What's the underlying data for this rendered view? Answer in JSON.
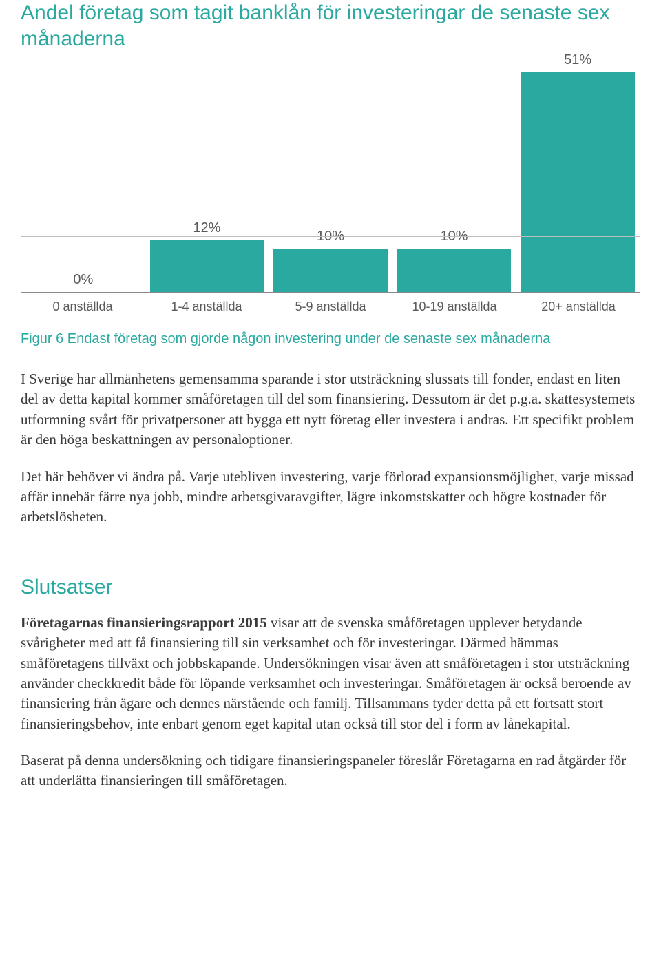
{
  "chart": {
    "title": "Andel företag som tagit banklån för investeringar de senaste sex månaderna",
    "title_color": "#2aa9a0",
    "type": "bar",
    "categories": [
      "0 anställda",
      "1-4 anställda",
      "5-9 anställda",
      "10-19 anställda",
      "20+ anställda"
    ],
    "values": [
      0,
      12,
      10,
      10,
      51
    ],
    "value_labels": [
      "0%",
      "12%",
      "10%",
      "10%",
      "51%"
    ],
    "ymax": 51,
    "gridlines": [
      12.75,
      25.5,
      38.25,
      51
    ],
    "bar_color": "#2aa9a0",
    "grid_color": "#bdbdbd",
    "axis_color": "#8a8a8a",
    "label_color": "#5a5a5a",
    "label_fontsize": 20,
    "xlabel_fontsize": 18,
    "caption": "Figur 6 Endast företag som gjorde någon investering under de senaste sex månaderna",
    "caption_color": "#2aa9a0"
  },
  "para1": "I Sverige har allmänhetens gemensamma sparande i stor utsträckning slussats till fonder, endast en liten del av detta kapital kommer småföretagen till del som finansiering. Dessutom är det p.g.a. skattesystemets utformning svårt för privatpersoner att bygga ett nytt företag eller investera i andras. Ett specifikt problem är den höga beskattningen av personaloptioner.",
  "para2": "Det här behöver vi ändra på. Varje utebliven investering, varje förlorad expansionsmöjlighet, varje missad affär innebär färre nya jobb, mindre arbetsgivaravgifter, lägre inkomstskatter och högre kostnader för arbetslösheten.",
  "section": {
    "heading": "Slutsatser",
    "heading_color": "#2aa9a0",
    "para1_bold": "Företagarnas finansieringsrapport 2015",
    "para1_rest": " visar att de svenska småföretagen upplever betydande svårigheter med att få finansiering till sin verksamhet och för investeringar. Därmed hämmas småföretagens tillväxt och jobbskapande. Undersökningen visar även att småföretagen i stor utsträckning använder checkkredit både för löpande verksamhet och investeringar. Småföretagen är också beroende av finansiering från ägare och dennes närstående och familj. Tillsammans tyder detta på ett fortsatt stort finansieringsbehov, inte enbart genom eget kapital utan också till stor del i form av lånekapital.",
    "para2": "Baserat på denna undersökning och tidigare finansieringspaneler föreslår Företagarna en rad åtgärder för att underlätta finansieringen till småföretagen."
  },
  "body_color": "#3a3a3a"
}
